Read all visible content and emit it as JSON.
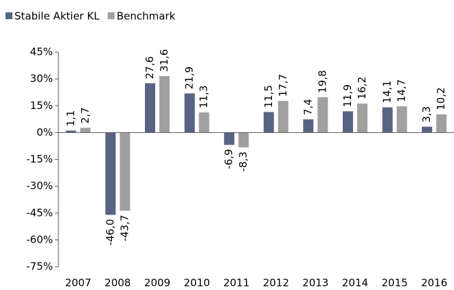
{
  "chart_data": {
    "type": "bar",
    "categories": [
      "2007",
      "2008",
      "2009",
      "2010",
      "2011",
      "2012",
      "2013",
      "2014",
      "2015",
      "2016"
    ],
    "series": [
      {
        "name": "Stabile Aktier KL",
        "color": "#596485",
        "values": [
          1.1,
          -46.0,
          27.6,
          21.9,
          -6.9,
          11.5,
          7.4,
          11.9,
          14.1,
          3.3
        ],
        "value_labels": [
          "1,1",
          "-46,0",
          "27,6",
          "21,9",
          "-6,9",
          "11,5",
          "7,4",
          "11,9",
          "14,1",
          "3,3"
        ]
      },
      {
        "name": "Benchmark",
        "color": "#a0a0a0",
        "values": [
          2.7,
          -43.7,
          31.6,
          11.3,
          -8.3,
          17.7,
          19.8,
          16.2,
          14.7,
          10.2
        ],
        "value_labels": [
          "2,7",
          "-43,7",
          "31,6",
          "11,3",
          "-8,3",
          "17,7",
          "19,8",
          "16,2",
          "14,7",
          "10,2"
        ]
      }
    ],
    "ylim": [
      -75,
      45
    ],
    "yticks": [
      {
        "value": -75,
        "label": "-75%"
      },
      {
        "value": -60,
        "label": "-60%"
      },
      {
        "value": -45,
        "label": "-45%"
      },
      {
        "value": -30,
        "label": "-30%"
      },
      {
        "value": -15,
        "label": "-15%"
      },
      {
        "value": 0,
        "label": "0%"
      },
      {
        "value": 15,
        "label": "15%"
      },
      {
        "value": 30,
        "label": "30%"
      },
      {
        "value": 45,
        "label": "45%"
      }
    ],
    "grid": false,
    "legend": "top-left"
  }
}
